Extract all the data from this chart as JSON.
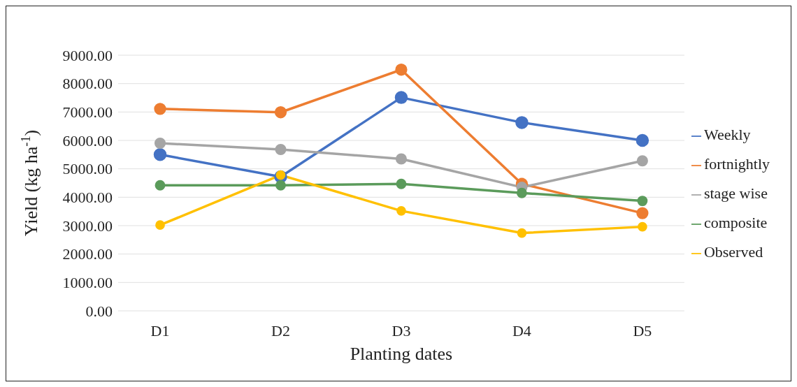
{
  "chart_data": {
    "type": "line",
    "xlabel": "Planting dates",
    "ylabel": "Yield (kg ha$^{-1}$)",
    "categories": [
      "D1",
      "D2",
      "D3",
      "D4",
      "D5"
    ],
    "series": [
      {
        "name": "Weekly",
        "color": "#4472c4",
        "values": [
          5500,
          4720,
          7510,
          6630,
          6000
        ]
      },
      {
        "name": "fortnightly",
        "color": "#ed7d31",
        "values": [
          7110,
          6990,
          8490,
          4470,
          3440
        ]
      },
      {
        "name": "stage wise",
        "color": "#a5a5a5",
        "values": [
          5900,
          5680,
          5350,
          4350,
          5280
        ]
      },
      {
        "name": "composite",
        "color": "#5b9b5b",
        "values": [
          4420,
          4420,
          4470,
          4150,
          3870
        ]
      },
      {
        "name": "Observed",
        "color": "#ffc000",
        "values": [
          3020,
          4780,
          3520,
          2740,
          2960
        ]
      }
    ],
    "ylim": [
      0,
      9000
    ],
    "yticks": [
      {
        "value": 0,
        "label": "0.00"
      },
      {
        "value": 1000,
        "label": "1000.00"
      },
      {
        "value": 2000,
        "label": "2000.00"
      },
      {
        "value": 3000,
        "label": "3000.00"
      },
      {
        "value": 4000,
        "label": "4000.00"
      },
      {
        "value": 5000,
        "label": "5000.00"
      },
      {
        "value": 6000,
        "label": "6000.00"
      },
      {
        "value": 7000,
        "label": "7000.00"
      },
      {
        "value": 8000,
        "label": "8000.00"
      },
      {
        "value": 9000,
        "label": "9000.00"
      }
    ],
    "grid": "y",
    "legend": "right",
    "marker": "circle",
    "line_style": "solid"
  }
}
